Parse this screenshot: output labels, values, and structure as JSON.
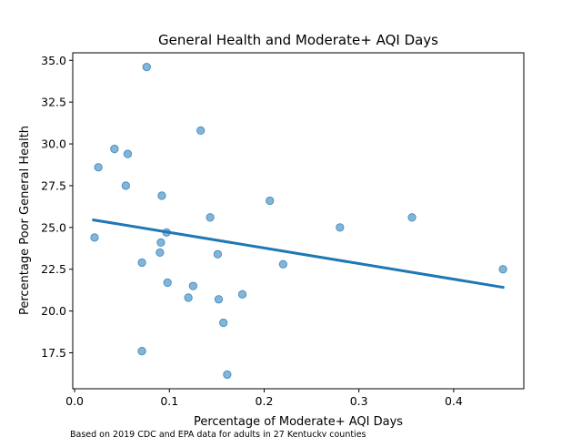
{
  "chart_data": {
    "type": "scatter",
    "title": "General Health and Moderate+ AQI Days",
    "xlabel": "Percentage of Moderate+ AQI Days",
    "ylabel": "Percentage Poor General Health",
    "footnote": "Based on 2019 CDC and EPA data for adults in 27 Kentucky counties",
    "xlim": [
      -0.002,
      0.474
    ],
    "ylim": [
      15.35,
      35.45
    ],
    "x_ticks": [
      0.0,
      0.1,
      0.2,
      0.3,
      0.4
    ],
    "x_tick_labels": [
      "0.0",
      "0.1",
      "0.2",
      "0.3",
      "0.4"
    ],
    "y_ticks": [
      17.5,
      20.0,
      22.5,
      25.0,
      27.5,
      30.0,
      32.5,
      35.0
    ],
    "y_tick_labels": [
      "17.5",
      "20.0",
      "22.5",
      "25.0",
      "27.5",
      "30.0",
      "32.5",
      "35.0"
    ],
    "grid": false,
    "point_color": "#1f77b4",
    "point_alpha": 0.55,
    "line_color": "#1f77b4",
    "points": [
      {
        "x": 0.021,
        "y": 24.4
      },
      {
        "x": 0.025,
        "y": 28.6
      },
      {
        "x": 0.042,
        "y": 29.7
      },
      {
        "x": 0.054,
        "y": 27.5
      },
      {
        "x": 0.056,
        "y": 29.4
      },
      {
        "x": 0.071,
        "y": 22.9
      },
      {
        "x": 0.071,
        "y": 17.6
      },
      {
        "x": 0.076,
        "y": 34.6
      },
      {
        "x": 0.09,
        "y": 23.5
      },
      {
        "x": 0.091,
        "y": 24.1
      },
      {
        "x": 0.092,
        "y": 26.9
      },
      {
        "x": 0.097,
        "y": 24.7
      },
      {
        "x": 0.098,
        "y": 21.7
      },
      {
        "x": 0.12,
        "y": 20.8
      },
      {
        "x": 0.125,
        "y": 21.5
      },
      {
        "x": 0.133,
        "y": 30.8
      },
      {
        "x": 0.143,
        "y": 25.6
      },
      {
        "x": 0.151,
        "y": 23.4
      },
      {
        "x": 0.152,
        "y": 20.7
      },
      {
        "x": 0.157,
        "y": 19.3
      },
      {
        "x": 0.161,
        "y": 16.2
      },
      {
        "x": 0.177,
        "y": 21.0
      },
      {
        "x": 0.206,
        "y": 26.6
      },
      {
        "x": 0.22,
        "y": 22.8
      },
      {
        "x": 0.28,
        "y": 25.0
      },
      {
        "x": 0.356,
        "y": 25.6
      },
      {
        "x": 0.452,
        "y": 22.5
      }
    ],
    "regression_line": {
      "x": [
        0.02,
        0.452
      ],
      "y": [
        25.45,
        21.42
      ]
    }
  }
}
